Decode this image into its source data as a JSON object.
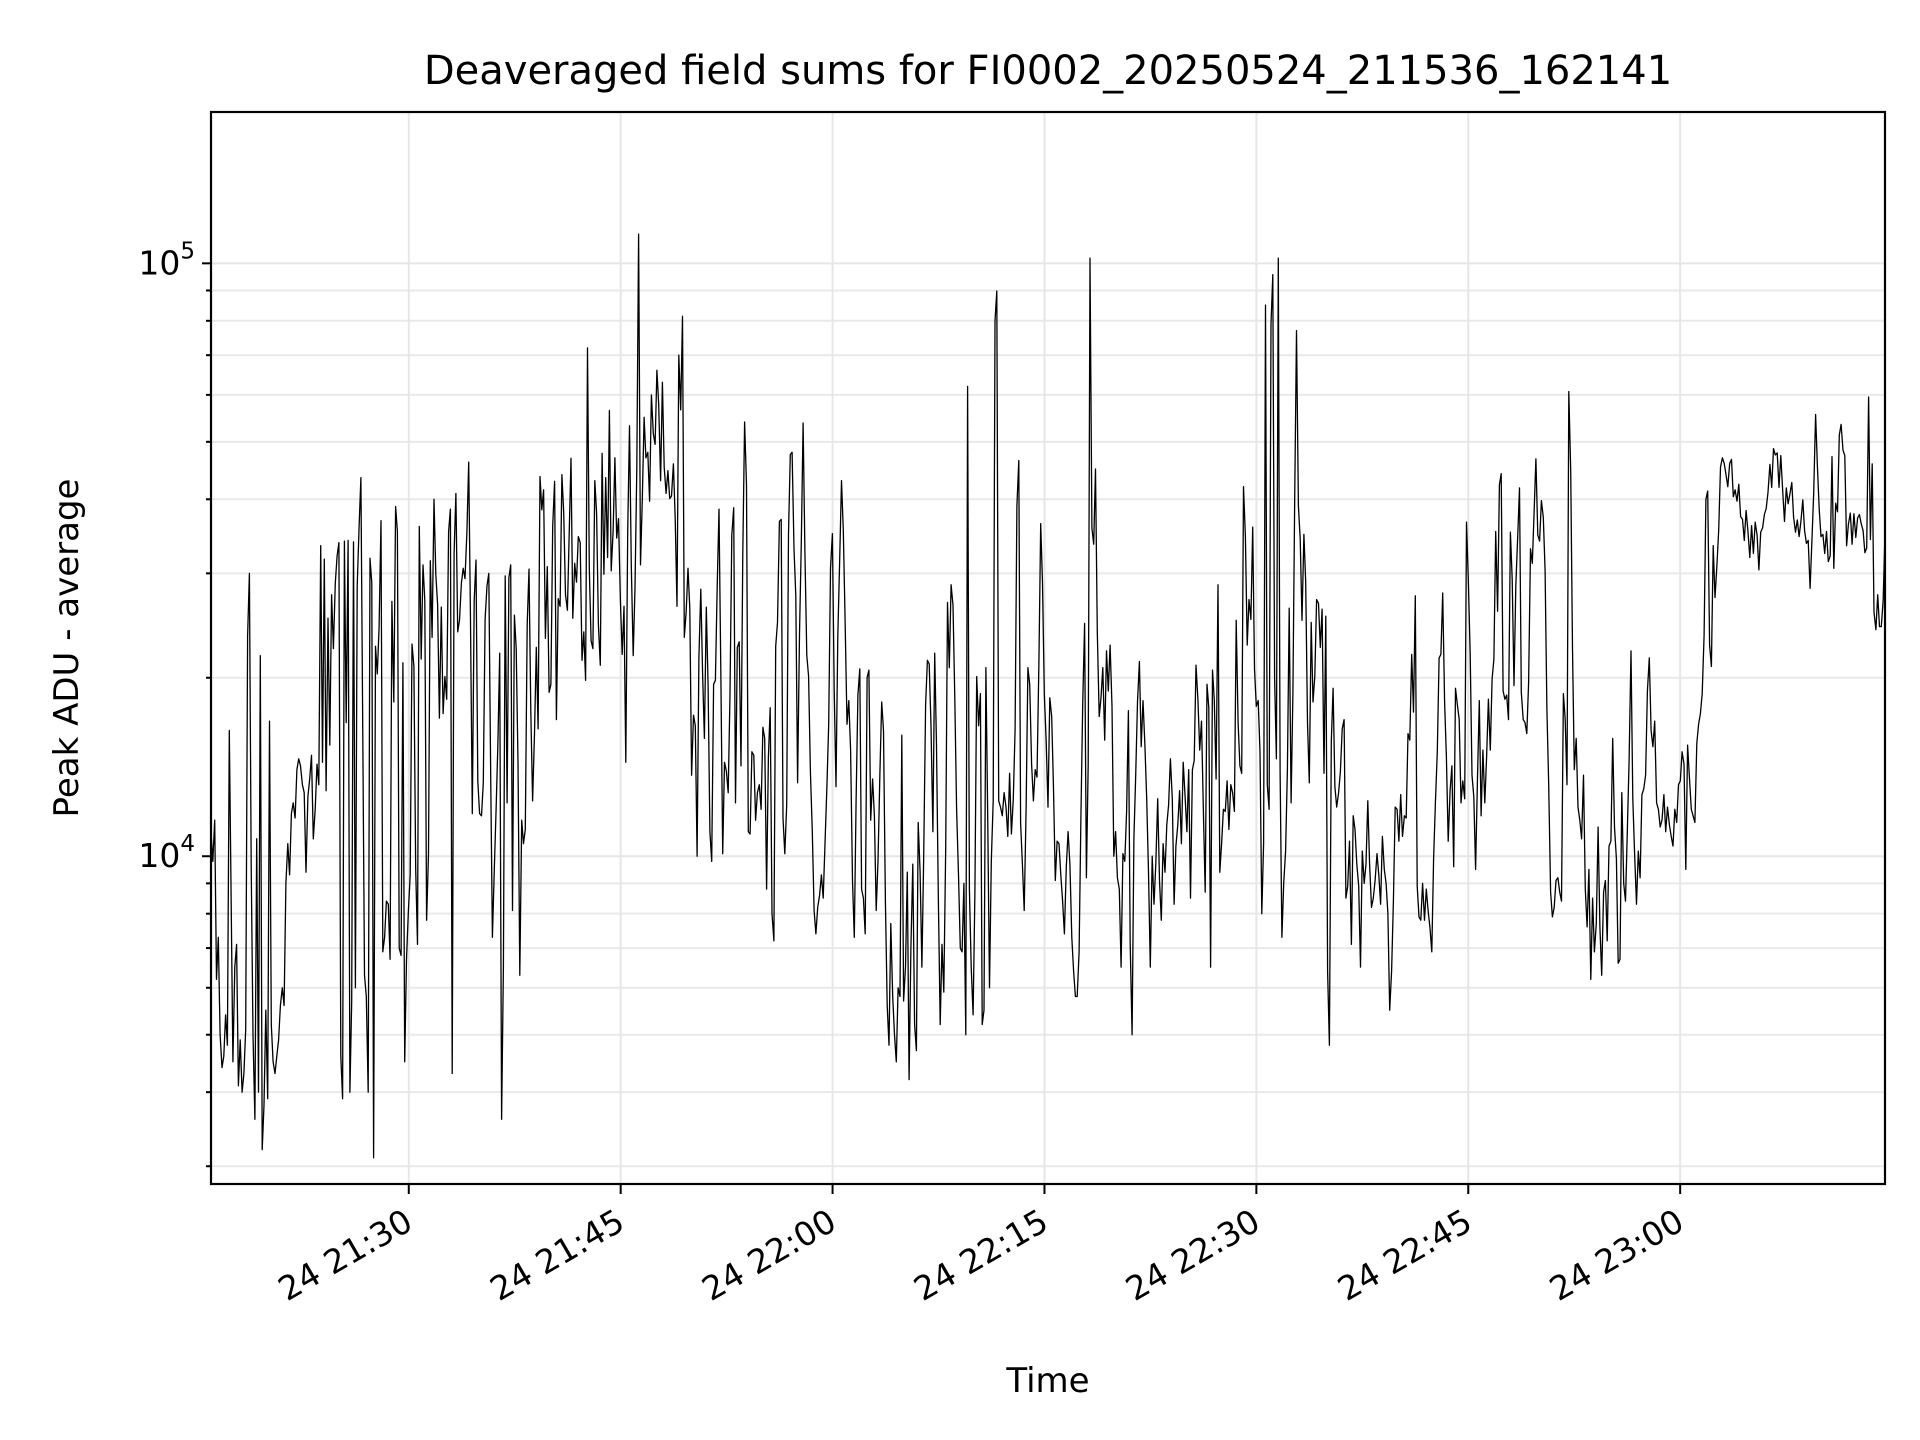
{
  "chart_data": {
    "type": "line",
    "title": "Deaveraged field sums for FI0002_20250524_211536_162141",
    "xlabel": "Time",
    "ylabel": "Peak ADU - average",
    "yscale": "log",
    "xlim": [
      "2025-05-24T21:16:00",
      "2025-05-24T23:14:30"
    ],
    "ylim": [
      2800,
      180000
    ],
    "grid": true,
    "line_color": "#000000",
    "x_ticks": [
      {
        "value": "2025-05-24T21:30:00",
        "label": "24 21:30"
      },
      {
        "value": "2025-05-24T21:45:00",
        "label": "24 21:45"
      },
      {
        "value": "2025-05-24T22:00:00",
        "label": "24 22:00"
      },
      {
        "value": "2025-05-24T22:15:00",
        "label": "24 22:15"
      },
      {
        "value": "2025-05-24T22:30:00",
        "label": "24 22:30"
      },
      {
        "value": "2025-05-24T22:45:00",
        "label": "24 22:45"
      },
      {
        "value": "2025-05-24T23:00:00",
        "label": "24 23:00"
      }
    ],
    "y_ticks": [
      {
        "value": 10000,
        "label_base": "10",
        "label_exp": "4"
      },
      {
        "value": 100000,
        "label_base": "10",
        "label_exp": "5"
      }
    ],
    "series": [
      {
        "start": "2025-05-24T21:16:00",
        "end": "2025-05-24T23:14:30",
        "values": [
          11000,
          9800,
          11500,
          6200,
          7300,
          5000,
          4400,
          4600,
          5400,
          4800,
          16300,
          8600,
          4500,
          6500,
          7100,
          4100,
          4900,
          4000,
          4300,
          5100,
          23500,
          30000,
          9600,
          5000,
          3600,
          10700,
          4000,
          21800,
          3200,
          3800,
          5500,
          3900,
          16900,
          5200,
          4500,
          4300,
          4600,
          4900,
          5600,
          6000,
          5600,
          9000,
          10500,
          9300,
          11800,
          12300,
          11600,
          14000,
          14600,
          14200,
          13200,
          12800,
          9400,
          12600,
          13500,
          14800,
          10700,
          12000,
          14300,
          13200,
          33400,
          14400,
          31700,
          12900,
          25200,
          15400,
          27600,
          22400,
          28900,
          32100,
          33800,
          4600,
          3900,
          34000,
          16800,
          34100,
          4000,
          5700,
          33900,
          6000,
          28500,
          35600,
          43500,
          16800,
          6300,
          5800,
          4000,
          31800,
          28900,
          3100,
          22600,
          20300,
          24400,
          36800,
          6900,
          7300,
          8400,
          8300,
          6700,
          26900,
          18200,
          38900,
          35300,
          7000,
          6800,
          21200,
          4500,
          6700,
          8100,
          9300,
          22800,
          20900,
          9500,
          7100,
          36000,
          21500,
          31000,
          27000,
          7800,
          10100,
          31500,
          23400,
          40000,
          29900,
          26600,
          17100,
          26300,
          17400,
          20100,
          18400,
          35300,
          38500,
          4300,
          32500,
          40900,
          23900,
          25000,
          28900,
          30600,
          29400,
          35200,
          46200,
          24900,
          11800,
          27000,
          31600,
          13400,
          11800,
          11700,
          13300,
          25100,
          28600,
          30000,
          14200,
          7300,
          9500,
          12000,
          15500,
          22000,
          3600,
          6500,
          29700,
          12300,
          29500,
          31000,
          8100,
          25500,
          22400,
          14400,
          6300,
          11500,
          10500,
          11100,
          24600,
          30500,
          17600,
          12400,
          16100,
          22500,
          16400,
          43700,
          38400,
          41500,
          23300,
          30800,
          18900,
          19500,
          36000,
          42900,
          17000,
          27200,
          26400,
          44000,
          38000,
          27600,
          26000,
          35000,
          46900,
          25200,
          31200,
          29000,
          34600,
          33800,
          21400,
          23900,
          19800,
          72000,
          30600,
          23100,
          22400,
          43000,
          37900,
          24600,
          21000,
          47800,
          29900,
          43500,
          31900,
          56500,
          30300,
          35300,
          47000,
          34400,
          37100,
          27000,
          21900,
          26400,
          14400,
          35200,
          53200,
          30900,
          21800,
          28400,
          45000,
          112000,
          31000,
          40000,
          55000,
          47000,
          48000,
          39700,
          60000,
          51600,
          49500,
          66000,
          57800,
          43000,
          63000,
          45300,
          40900,
          44700,
          40100,
          40500,
          45900,
          37100,
          26400,
          70000,
          56600,
          81400,
          23400,
          25900,
          30600,
          26200,
          13700,
          17300,
          16600,
          10000,
          21600,
          28200,
          20300,
          15800,
          26300,
          19400,
          11000,
          9800,
          19500,
          19800,
          28500,
          38500,
          19900,
          10100,
          14400,
          13900,
          12800,
          18800,
          34800,
          38700,
          12300,
          22500,
          23000,
          14200,
          32500,
          54000,
          42300,
          11000,
          10900,
          15000,
          14800,
          11500,
          12800,
          13200,
          12000,
          16500,
          15800,
          8800,
          14700,
          17800,
          8000,
          7200,
          22600,
          24800,
          36700,
          37000,
          11600,
          10100,
          12200,
          35000,
          47600,
          48000,
          33000,
          27500,
          13300,
          23700,
          33800,
          53800,
          32700,
          21800,
          20100,
          13900,
          11000,
          8100,
          7400,
          8200,
          8600,
          9300,
          8500,
          10500,
          13100,
          16700,
          30600,
          35000,
          19100,
          13100,
          23500,
          31700,
          43000,
          35500,
          25000,
          16700,
          18300,
          15100,
          9100,
          7300,
          12400,
          18700,
          20700,
          8800,
          8500,
          7400,
          20000,
          20600,
          11500,
          13500,
          11700,
          8100,
          9800,
          13800,
          18200,
          16300,
          8400,
          5600,
          4800,
          7700,
          5800,
          5000,
          4500,
          6000,
          5800,
          16000,
          5700,
          6500,
          9400,
          4200,
          7000,
          9700,
          5200,
          4700,
          11400,
          9400,
          6500,
          10000,
          18000,
          21400,
          21100,
          16600,
          11000,
          22000,
          15400,
          8600,
          5200,
          7100,
          5900,
          10300,
          26800,
          20800,
          28700,
          26500,
          18500,
          12000,
          9300,
          7000,
          6900,
          9000,
          5000,
          62000,
          8800,
          6500,
          5400,
          8700,
          20100,
          16600,
          18800,
          5200,
          5500,
          20800,
          11700,
          6000,
          9800,
          12400,
          80000,
          89800,
          12400,
          12100,
          11700,
          12800,
          12100,
          10800,
          13800,
          10900,
          12500,
          16400,
          39000,
          46500,
          11400,
          9700,
          8100,
          12000,
          20800,
          19500,
          14300,
          12400,
          14000,
          13600,
          21200,
          36400,
          28900,
          18800,
          15600,
          12100,
          18500,
          17200,
          13000,
          9100,
          10600,
          10500,
          9300,
          8400,
          7400,
          9600,
          11000,
          9700,
          7300,
          6400,
          5800,
          5800,
          6900,
          11600,
          18000,
          24700,
          9200,
          14300,
          102000,
          35800,
          33600,
          45000,
          23900,
          17200,
          18500,
          20800,
          15700,
          22200,
          19000,
          22700,
          17900,
          10000,
          11000,
          9200,
          8800,
          6500,
          10100,
          9800,
          11900,
          17600,
          7100,
          5000,
          10700,
          13700,
          18200,
          21300,
          15300,
          18300,
          15400,
          12500,
          9400,
          6500,
          10000,
          8300,
          9700,
          12500,
          9100,
          7800,
          10500,
          9400,
          11300,
          12200,
          14600,
          12500,
          8300,
          10400,
          11300,
          12900,
          10500,
          14400,
          12600,
          11000,
          14000,
          8500,
          14000,
          14500,
          21000,
          18400,
          15100,
          16900,
          12100,
          8700,
          19500,
          17800,
          6500,
          20600,
          18300,
          13500,
          28700,
          9400,
          10500,
          12000,
          11900,
          13400,
          11100,
          13200,
          12800,
          11900,
          25000,
          16800,
          14200,
          13800,
          42000,
          34600,
          22700,
          27100,
          25100,
          35900,
          20700,
          17900,
          18300,
          15000,
          8000,
          10500,
          85000,
          13200,
          12000,
          79000,
          95700,
          20000,
          14600,
          102000,
          13900,
          7300,
          9000,
          10200,
          14000,
          26200,
          12300,
          18800,
          40200,
          77000,
          39000,
          34300,
          25000,
          34900,
          29000,
          16800,
          13300,
          24800,
          18200,
          20100,
          27100,
          26700,
          22500,
          26100,
          13800,
          25400,
          6400,
          4800,
          15600,
          19200,
          13100,
          12100,
          12800,
          13900,
          16400,
          17000,
          8500,
          8900,
          10600,
          7100,
          11700,
          11100,
          9700,
          8900,
          6500,
          10200,
          9000,
          9700,
          12400,
          9700,
          8200,
          8500,
          9100,
          10100,
          9300,
          8300,
          10800,
          9500,
          9000,
          8000,
          5500,
          6400,
          8400,
          12100,
          12000,
          10600,
          12700,
          10800,
          11700,
          11600,
          16100,
          15700,
          21900,
          17500,
          27500,
          8900,
          7900,
          7800,
          9000,
          7800,
          8800,
          8100,
          7600,
          6900,
          9900,
          12300,
          15000,
          21600,
          21900,
          27800,
          18200,
          14700,
          10600,
          12900,
          14200,
          9600,
          19200,
          18000,
          17000,
          12300,
          13400,
          12500,
          36600,
          29300,
          21900,
          13700,
          12600,
          9500,
          13600,
          18300,
          11700,
          15100,
          12300,
          14700,
          18400,
          15100,
          19900,
          21500,
          35300,
          25900,
          42300,
          44200,
          19000,
          18400,
          18700,
          17000,
          35200,
          29300,
          19400,
          28500,
          34600,
          41800,
          18900,
          17000,
          16800,
          16100,
          19600,
          33000,
          31200,
          38000,
          46800,
          34800,
          34000,
          39800,
          37300,
          30300,
          17700,
          13200,
          8700,
          7900,
          8200,
          9100,
          9200,
          8700,
          8400,
          18800,
          17000,
          13200,
          60800,
          44800,
          22400,
          14000,
          15800,
          12100,
          11500,
          10700,
          13700,
          8800,
          7600,
          9500,
          6200,
          8500,
          6900,
          7700,
          11200,
          7600,
          6300,
          8700,
          9100,
          7200,
          10400,
          10600,
          15800,
          11200,
          9900,
          6600,
          6700,
          12800,
          9000,
          8400,
          11000,
          14500,
          22200,
          12500,
          10100,
          8300,
          10200,
          9200,
          12700,
          13000,
          13700,
          19000,
          21600,
          16300,
          15300,
          16900,
          12300,
          12000,
          11200,
          11500,
          12700,
          11000,
          12100,
          11300,
          10800,
          10400,
          12000,
          11400,
          13200,
          13400,
          15000,
          14300,
          9500,
          15400,
          13500,
          12000,
          11700,
          11400,
          15500,
          16700,
          17400,
          18800,
          23600,
          40000,
          41300,
          22700,
          20900,
          33400,
          27300,
          30900,
          35500,
          45300,
          47000,
          46000,
          44000,
          42000,
          46000,
          46700,
          40400,
          41500,
          39700,
          42400,
          37400,
          37000,
          34100,
          38300,
          35400,
          31900,
          36100,
          32400,
          36600,
          34800,
          30400,
          35200,
          35800,
          37700,
          38600,
          41100,
          45800,
          41900,
          48700,
          47500,
          47900,
          41900,
          47400,
          41300,
          36700,
          41800,
          39300,
          40900,
          42700,
          37300,
          35200,
          36900,
          34600,
          36700,
          39900,
          35400,
          33700,
          34100,
          28300,
          34000,
          41000,
          55600,
          45500,
          38500,
          34600,
          34900,
          32400,
          35300,
          31400,
          32100,
          47200,
          30600,
          39400,
          38100,
          51300,
          53500,
          48400,
          47400,
          33400,
          36300,
          37900,
          33600,
          37800,
          34500,
          37200,
          37700,
          36400,
          35400,
          32500,
          33100,
          59500,
          34200,
          45900,
          25800,
          24100,
          27600,
          24400,
          24400,
          27100,
          35300
        ]
      }
    ]
  }
}
